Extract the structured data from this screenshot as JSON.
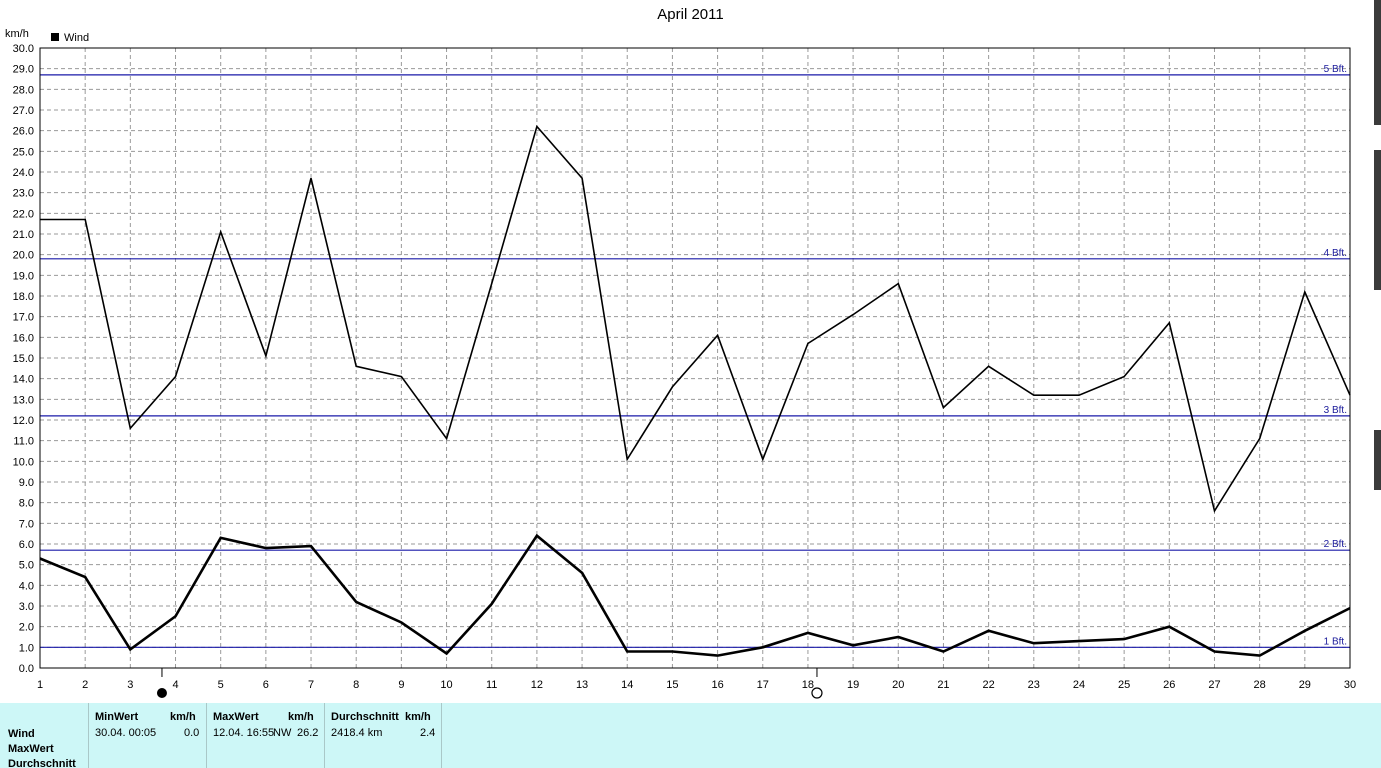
{
  "chart_data": {
    "type": "line",
    "title": "April 2011",
    "ylabel": "km/h",
    "ylim": [
      0,
      30
    ],
    "y_ticks": [
      "0.0",
      "1.0",
      "2.0",
      "3.0",
      "4.0",
      "5.0",
      "6.0",
      "7.0",
      "8.0",
      "9.0",
      "10.0",
      "11.0",
      "12.0",
      "13.0",
      "14.0",
      "15.0",
      "16.0",
      "17.0",
      "18.0",
      "19.0",
      "20.0",
      "21.0",
      "22.0",
      "23.0",
      "24.0",
      "25.0",
      "26.0",
      "27.0",
      "28.0",
      "29.0",
      "30.0"
    ],
    "x": [
      "1",
      "2",
      "3",
      "4",
      "5",
      "6",
      "7",
      "8",
      "9",
      "10",
      "11",
      "12",
      "13",
      "14",
      "15",
      "16",
      "17",
      "18",
      "19",
      "20",
      "21",
      "22",
      "23",
      "24",
      "25",
      "26",
      "27",
      "28",
      "29",
      "30"
    ],
    "grid": true,
    "legend": {
      "position": "top-left",
      "entries": [
        "Wind"
      ]
    },
    "series": [
      {
        "name": "Wind",
        "role": "daily max",
        "color": "#000000",
        "values": [
          21.7,
          21.7,
          11.6,
          14.1,
          21.1,
          15.1,
          23.7,
          14.6,
          14.1,
          11.1,
          18.6,
          26.2,
          23.7,
          10.1,
          13.6,
          16.1,
          10.1,
          15.7,
          17.1,
          18.6,
          12.6,
          14.6,
          13.2,
          13.2,
          14.1,
          16.7,
          7.6,
          11.1,
          18.2,
          13.2
        ]
      },
      {
        "role": "daily average",
        "color": "#000000",
        "values": [
          5.3,
          4.4,
          0.9,
          2.5,
          6.3,
          5.8,
          5.9,
          3.2,
          2.2,
          0.7,
          3.1,
          6.4,
          4.6,
          0.8,
          0.8,
          0.6,
          1.0,
          1.7,
          1.1,
          1.5,
          0.8,
          1.8,
          1.2,
          1.3,
          1.4,
          2.0,
          0.8,
          0.6,
          1.8,
          2.9
        ]
      }
    ],
    "reference_lines": [
      {
        "label": "1 Bft.",
        "value": 1.0
      },
      {
        "label": "2 Bft.",
        "value": 5.7
      },
      {
        "label": "3 Bft.",
        "value": 12.2
      },
      {
        "label": "4 Bft.",
        "value": 19.8
      },
      {
        "label": "5 Bft.",
        "value": 28.7
      }
    ],
    "reference_color": "#1a1aa8",
    "moon_phases": [
      {
        "day": 3.7,
        "phase": "new-moon"
      },
      {
        "day": 18.2,
        "phase": "full-moon"
      }
    ]
  },
  "stats": {
    "row_labels": [
      "Wind",
      "MaxWert",
      "Durchschnitt"
    ],
    "min": {
      "header": "MinWert",
      "unit": "km/h",
      "date": "30.04.  00:05",
      "value": "0.0"
    },
    "max": {
      "header": "MaxWert",
      "unit": "km/h",
      "date": "12.04.  16:55",
      "dir": "NW",
      "value": "26.2"
    },
    "avg": {
      "header": "Durchschnitt",
      "unit": "km/h",
      "distance": "2418.4 km",
      "value": "2.4"
    }
  },
  "colors": {
    "panel_bg": "#cdf7f7",
    "grid": "#9a9a9a",
    "line": "#000000",
    "bft": "#1a1aa8"
  }
}
